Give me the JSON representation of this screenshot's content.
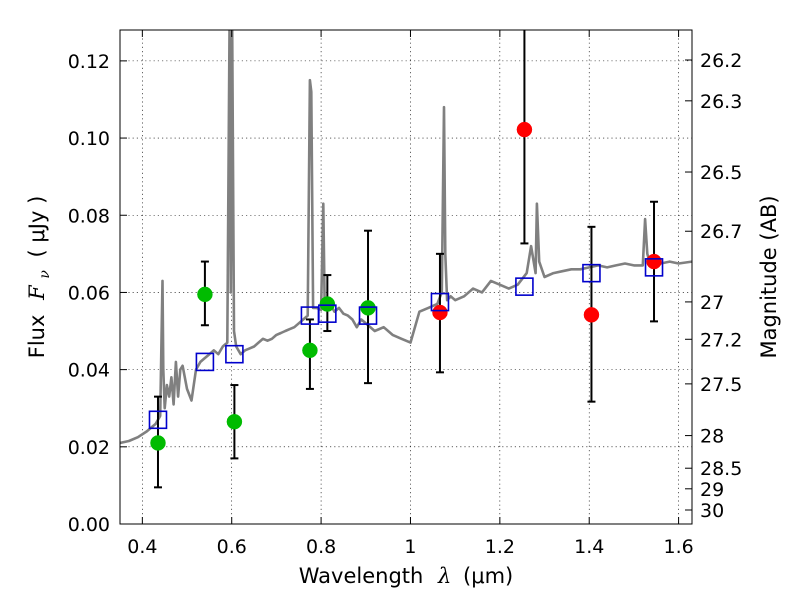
{
  "chart_data": {
    "type": "scatter",
    "xlabel": "Wavelength",
    "xlabel_symbol": "λ",
    "xlabel_unit": "(μm)",
    "ylabel": "Flux",
    "ylabel_symbol": "F",
    "ylabel_subscript": "ν",
    "ylabel_unit": "( μJy )",
    "y2label": "Magnitude (AB)",
    "xlim": [
      0.35,
      1.63
    ],
    "ylim": [
      0.0,
      0.128
    ],
    "grid": true,
    "x_ticks": [
      0.4,
      0.6,
      0.8,
      1.0,
      1.2,
      1.4,
      1.6
    ],
    "x_tick_labels": [
      "0.4",
      "0.6",
      "0.8",
      "1",
      "1.2",
      "1.4",
      "1.6"
    ],
    "y_ticks": [
      0.0,
      0.02,
      0.04,
      0.06,
      0.08,
      0.1,
      0.12
    ],
    "y_tick_labels": [
      "0.00",
      "0.02",
      "0.04",
      "0.06",
      "0.08",
      "0.10",
      "0.12"
    ],
    "magnitude_ticks": [
      {
        "label": "26.2",
        "value": 26.2
      },
      {
        "label": "26.3",
        "value": 26.3
      },
      {
        "label": "26.5",
        "value": 26.5
      },
      {
        "label": "26.7",
        "value": 26.7
      },
      {
        "label": "27",
        "value": 27.0
      },
      {
        "label": "27.2",
        "value": 27.2
      },
      {
        "label": "27.5",
        "value": 27.5
      },
      {
        "label": "28",
        "value": 28.0
      },
      {
        "label": "28.5",
        "value": 28.5
      },
      {
        "label": "29",
        "value": 29.0
      },
      {
        "label": "30",
        "value": 30.0
      }
    ],
    "colors": {
      "green": "#00bb00",
      "red": "#ff0000",
      "model": "#0000cc",
      "spectrum": "#808080",
      "errorbar": "#000000"
    },
    "series": [
      {
        "name": "green-points",
        "marker": "circle",
        "color": "#00bb00",
        "points": [
          {
            "x": 0.435,
            "y": 0.021,
            "err_low": 0.0115,
            "err_high": 0.012
          },
          {
            "x": 0.54,
            "y": 0.0595,
            "err_low": 0.008,
            "err_high": 0.0085
          },
          {
            "x": 0.606,
            "y": 0.0265,
            "err_low": 0.0095,
            "err_high": 0.0095
          },
          {
            "x": 0.775,
            "y": 0.045,
            "err_low": 0.01,
            "err_high": 0.008
          },
          {
            "x": 0.814,
            "y": 0.057,
            "err_low": 0.007,
            "err_high": 0.0075
          },
          {
            "x": 0.905,
            "y": 0.056,
            "err_low": 0.0195,
            "err_high": 0.02
          }
        ]
      },
      {
        "name": "red-points",
        "marker": "circle",
        "color": "#ff0000",
        "points": [
          {
            "x": 1.066,
            "y": 0.0548,
            "err_low": 0.0155,
            "err_high": 0.0152
          },
          {
            "x": 1.255,
            "y": 0.1022,
            "err_low": 0.0295,
            "err_high": 0.026
          },
          {
            "x": 1.405,
            "y": 0.0542,
            "err_low": 0.0225,
            "err_high": 0.0228
          },
          {
            "x": 1.545,
            "y": 0.068,
            "err_low": 0.0155,
            "err_high": 0.0155
          }
        ]
      },
      {
        "name": "model-photometry",
        "marker": "open-square",
        "color": "#0000cc",
        "points": [
          {
            "x": 0.435,
            "y": 0.027
          },
          {
            "x": 0.54,
            "y": 0.042
          },
          {
            "x": 0.606,
            "y": 0.044
          },
          {
            "x": 0.775,
            "y": 0.054
          },
          {
            "x": 0.814,
            "y": 0.0545
          },
          {
            "x": 0.905,
            "y": 0.054
          },
          {
            "x": 1.066,
            "y": 0.0575
          },
          {
            "x": 1.255,
            "y": 0.0615
          },
          {
            "x": 1.405,
            "y": 0.065
          },
          {
            "x": 1.545,
            "y": 0.0665
          }
        ]
      }
    ],
    "spectrum": {
      "name": "model-spectrum",
      "color": "#808080",
      "x": [
        0.35,
        0.37,
        0.39,
        0.41,
        0.42,
        0.43,
        0.44,
        0.445,
        0.447,
        0.45,
        0.455,
        0.46,
        0.465,
        0.47,
        0.475,
        0.48,
        0.485,
        0.49,
        0.495,
        0.5,
        0.51,
        0.52,
        0.53,
        0.54,
        0.55,
        0.56,
        0.57,
        0.58,
        0.59,
        0.595,
        0.598,
        0.601,
        0.605,
        0.61,
        0.62,
        0.63,
        0.64,
        0.65,
        0.66,
        0.67,
        0.68,
        0.69,
        0.7,
        0.71,
        0.72,
        0.73,
        0.74,
        0.75,
        0.76,
        0.77,
        0.775,
        0.778,
        0.782,
        0.79,
        0.8,
        0.805,
        0.808,
        0.812,
        0.82,
        0.83,
        0.84,
        0.85,
        0.86,
        0.87,
        0.88,
        0.89,
        0.9,
        0.92,
        0.94,
        0.96,
        0.98,
        1.0,
        1.02,
        1.04,
        1.06,
        1.07,
        1.075,
        1.078,
        1.082,
        1.09,
        1.1,
        1.12,
        1.14,
        1.16,
        1.18,
        1.2,
        1.22,
        1.24,
        1.26,
        1.27,
        1.28,
        1.283,
        1.288,
        1.3,
        1.32,
        1.34,
        1.36,
        1.38,
        1.4,
        1.42,
        1.44,
        1.46,
        1.48,
        1.5,
        1.52,
        1.525,
        1.53,
        1.535,
        1.54,
        1.56,
        1.58,
        1.6,
        1.63
      ],
      "y": [
        0.021,
        0.0215,
        0.0225,
        0.024,
        0.025,
        0.026,
        0.028,
        0.063,
        0.04,
        0.03,
        0.036,
        0.033,
        0.038,
        0.031,
        0.042,
        0.033,
        0.04,
        0.041,
        0.038,
        0.035,
        0.032,
        0.04,
        0.042,
        0.043,
        0.044,
        0.045,
        0.044,
        0.046,
        0.047,
        0.128,
        0.06,
        0.128,
        0.05,
        0.046,
        0.044,
        0.045,
        0.0455,
        0.046,
        0.047,
        0.048,
        0.0475,
        0.048,
        0.049,
        0.0495,
        0.05,
        0.0505,
        0.051,
        0.052,
        0.053,
        0.054,
        0.115,
        0.112,
        0.056,
        0.056,
        0.0555,
        0.083,
        0.056,
        0.057,
        0.057,
        0.055,
        0.056,
        0.0545,
        0.054,
        0.053,
        0.051,
        0.053,
        0.052,
        0.05,
        0.051,
        0.049,
        0.048,
        0.047,
        0.055,
        0.056,
        0.057,
        0.06,
        0.108,
        0.07,
        0.058,
        0.059,
        0.058,
        0.059,
        0.061,
        0.06,
        0.063,
        0.062,
        0.061,
        0.062,
        0.065,
        0.072,
        0.065,
        0.083,
        0.068,
        0.064,
        0.065,
        0.0655,
        0.066,
        0.066,
        0.0665,
        0.067,
        0.0665,
        0.067,
        0.0675,
        0.067,
        0.067,
        0.079,
        0.07,
        0.068,
        0.0675,
        0.0675,
        0.068,
        0.0675,
        0.068
      ]
    }
  }
}
